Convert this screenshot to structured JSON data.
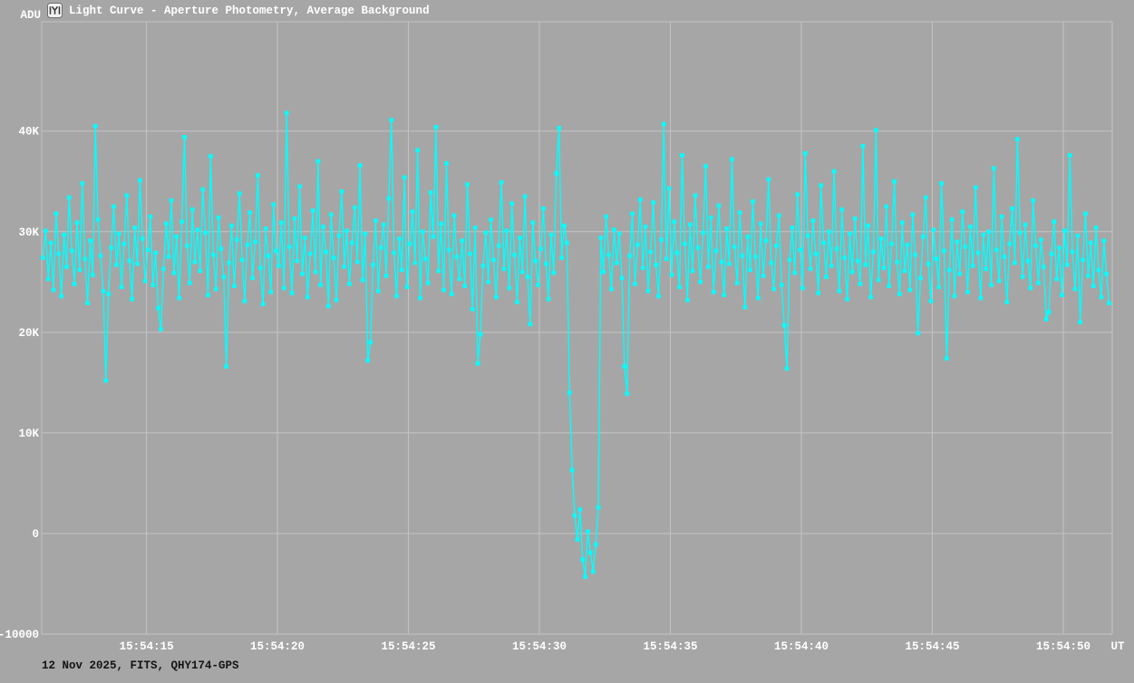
{
  "header": {
    "y_unit": "ADU",
    "icon": "tangra-app-icon"
  },
  "footer": {
    "info": "12 Nov 2025, FITS, QHY174-GPS"
  },
  "colors": {
    "background": "#a6a6a6",
    "grid": "#c4c4c4",
    "series": "#00ffff",
    "text_light": "#ffffff",
    "text_dark": "#141414"
  },
  "chart_data": {
    "type": "line",
    "title": "Light Curve - Aperture Photometry, Average Background",
    "xlabel": "UT",
    "ylabel": "ADU",
    "marker": "square",
    "series_color": "#00ffff",
    "grid": true,
    "legend": "none",
    "x_ticks": [
      {
        "label": "15:54:15",
        "t": 15
      },
      {
        "label": "15:54:20",
        "t": 20
      },
      {
        "label": "15:54:25",
        "t": 25
      },
      {
        "label": "15:54:30",
        "t": 30
      },
      {
        "label": "15:54:35",
        "t": 35
      },
      {
        "label": "15:54:40",
        "t": 40
      },
      {
        "label": "15:54:45",
        "t": 45
      },
      {
        "label": "15:54:50",
        "t": 50
      }
    ],
    "y_ticks": [
      {
        "label": "40K",
        "value": 40000
      },
      {
        "label": "30K",
        "value": 30000
      },
      {
        "label": "20K",
        "value": 20000
      },
      {
        "label": "10K",
        "value": 10000
      },
      {
        "label": "0",
        "value": 0
      },
      {
        "label": "-10000",
        "value": -10000
      }
    ],
    "x_range_s": [
      11.0,
      51.87
    ],
    "ylim": [
      -10000,
      50870
    ],
    "time_base": "15:54:00 UT",
    "t_start_s": 11.05,
    "dt_s": 0.1,
    "values": [
      27400,
      30100,
      25300,
      28900,
      24200,
      31800,
      27800,
      23600,
      29700,
      26500,
      33400,
      28100,
      24800,
      30900,
      26200,
      34800,
      27300,
      22900,
      29100,
      25700,
      40500,
      31200,
      27600,
      24100,
      15200,
      23800,
      28400,
      32500,
      26700,
      29800,
      24500,
      28800,
      33600,
      27100,
      23300,
      30400,
      26800,
      35100,
      29300,
      25100,
      28200,
      31500,
      24700,
      27900,
      22400,
      20300,
      26300,
      30800,
      27500,
      33100,
      25900,
      29500,
      23400,
      31000,
      39400,
      28600,
      24900,
      32200,
      27000,
      30200,
      26100,
      34200,
      29900,
      23700,
      37500,
      27700,
      24300,
      31400,
      28300,
      25500,
      16600,
      26900,
      30600,
      24600,
      29200,
      33800,
      27200,
      23100,
      28700,
      31900,
      25400,
      29000,
      35600,
      26400,
      22800,
      30300,
      27600,
      24000,
      32700,
      28100,
      26600,
      30900,
      24400,
      41800,
      28500,
      23900,
      31300,
      27100,
      34500,
      25800,
      29400,
      23500,
      27800,
      32100,
      26000,
      37000,
      24700,
      30500,
      28000,
      22600,
      31700,
      27400,
      23200,
      29600,
      34000,
      26500,
      30100,
      24800,
      28900,
      32400,
      27000,
      36600,
      25200,
      29800,
      17200,
      19000,
      26700,
      31100,
      24100,
      28400,
      30700,
      25600,
      33300,
      41100,
      27900,
      23600,
      29300,
      26200,
      35400,
      24500,
      28800,
      32000,
      26900,
      38100,
      23400,
      30000,
      27300,
      24900,
      33900,
      29500,
      40400,
      26100,
      30800,
      24200,
      36800,
      28200,
      23800,
      31600,
      27500,
      25300,
      29100,
      24600,
      34700,
      27800,
      22300,
      30400,
      16900,
      19800,
      26600,
      29900,
      25000,
      31200,
      27200,
      23500,
      28600,
      34900,
      26300,
      30100,
      24400,
      32800,
      27700,
      23000,
      29400,
      26000,
      33500,
      25500,
      20800,
      30900,
      27100,
      24700,
      28300,
      32300,
      26800,
      23300,
      29700,
      25900,
      35800,
      40300,
      27400,
      30600,
      28900,
      14000,
      6300,
      1800,
      -600,
      2400,
      -2600,
      -4300,
      200,
      -1900,
      -3800,
      -1100,
      2600,
      29400,
      26000,
      31500,
      27700,
      24300,
      30200,
      26900,
      29800,
      25400,
      16600,
      13900,
      27600,
      31800,
      24800,
      28700,
      33200,
      26400,
      30500,
      24100,
      28000,
      32900,
      26700,
      23600,
      29200,
      40700,
      27300,
      34300,
      25700,
      31000,
      27900,
      24500,
      37600,
      28800,
      23200,
      30700,
      26100,
      33600,
      28400,
      25000,
      29900,
      36500,
      26500,
      31400,
      24000,
      28100,
      32600,
      27000,
      23700,
      30300,
      26800,
      37200,
      28500,
      24900,
      31900,
      27600,
      22500,
      29500,
      26200,
      33000,
      27500,
      23400,
      30800,
      25600,
      29100,
      35200,
      26900,
      24300,
      28600,
      31600,
      24700,
      20700,
      16400,
      27200,
      30400,
      25900,
      33700,
      28200,
      24400,
      37800,
      29600,
      26300,
      31100,
      27800,
      23900,
      34600,
      28900,
      25500,
      30000,
      26600,
      36000,
      28300,
      24100,
      32200,
      27400,
      23300,
      29800,
      26000,
      31300,
      27100,
      24800,
      38500,
      26700,
      30600,
      23500,
      28000,
      40100,
      25200,
      29300,
      26400,
      32500,
      24600,
      28800,
      35000,
      27000,
      23800,
      30900,
      26100,
      28700,
      24200,
      31700,
      27700,
      19900,
      25400,
      29500,
      33400,
      26800,
      23100,
      30200,
      27300,
      24500,
      34800,
      28100,
      17400,
      26200,
      31200,
      23600,
      29000,
      25800,
      32000,
      28500,
      24000,
      30500,
      26600,
      34400,
      27900,
      23400,
      29700,
      26300,
      30000,
      24700,
      36300,
      28200,
      25100,
      31500,
      27500,
      23000,
      28800,
      32300,
      26900,
      39200,
      29900,
      25500,
      30700,
      27100,
      24400,
      33100,
      28600,
      24900,
      29200,
      26500,
      21300,
      22000,
      27800,
      31000,
      25300,
      28400,
      23700,
      30100,
      26700,
      37600,
      28000,
      24300,
      29600,
      21000,
      27200,
      31800,
      25600,
      28900,
      24600,
      30400,
      26200,
      23500,
      29100,
      25800,
      22900
    ]
  }
}
